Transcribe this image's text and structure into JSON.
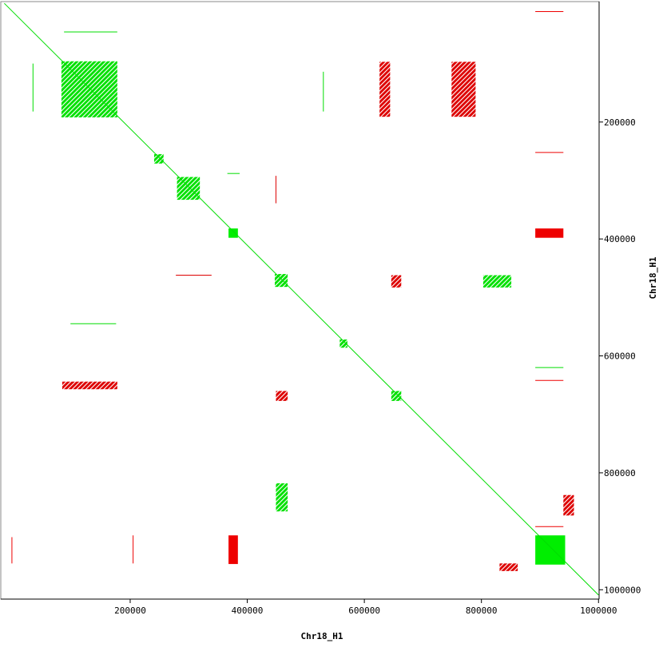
{
  "chart_data": {
    "type": "dotplot",
    "x_label": "Chr18_H1",
    "y_label": "Chr18_H1",
    "xlim": [
      -21000,
      1001000
    ],
    "ylim": [
      -6000,
      1016000
    ],
    "xticks": [
      200000,
      400000,
      600000,
      800000,
      1000000
    ],
    "yticks": [
      200000,
      400000,
      600000,
      800000,
      1000000
    ],
    "blocks": [
      {
        "x": [
          82600,
          178000
        ],
        "y": [
          96100,
          192000
        ],
        "color": "#00e000",
        "style": "hatched"
      },
      {
        "x": [
          241000,
          257000
        ],
        "y": [
          255000,
          271000
        ],
        "color": "#00e000",
        "style": "hatched"
      },
      {
        "x": [
          280000,
          319000
        ],
        "y": [
          294000,
          333000
        ],
        "color": "#00e000",
        "style": "hatched"
      },
      {
        "x": [
          368000,
          384000
        ],
        "y": [
          382000,
          398000
        ],
        "color": "#00ee00",
        "style": "solid"
      },
      {
        "x": [
          447000,
          469000
        ],
        "y": [
          460000,
          482000
        ],
        "color": "#00e000",
        "style": "hatched"
      },
      {
        "x": [
          558000,
          571000
        ],
        "y": [
          572000,
          586000
        ],
        "color": "#00e000",
        "style": "hatched"
      },
      {
        "x": [
          646000,
          663000
        ],
        "y": [
          660000,
          677000
        ],
        "color": "#00e000",
        "style": "hatched"
      },
      {
        "x": [
          892000,
          943000
        ],
        "y": [
          907000,
          957000
        ],
        "color": "#00ee00",
        "style": "solid"
      },
      {
        "x": [
          892000,
          940000
        ],
        "y": [
          382000,
          398000
        ],
        "color": "#ee0000",
        "style": "solid"
      },
      {
        "x": [
          368000,
          384000
        ],
        "y": [
          907000,
          956000
        ],
        "color": "#ee0000",
        "style": "solid"
      },
      {
        "x": [
          626000,
          644000
        ],
        "y": [
          97000,
          191000
        ],
        "color": "#dd0000",
        "style": "hatched"
      },
      {
        "x": [
          84000,
          178000
        ],
        "y": [
          644000,
          657000
        ],
        "color": "#dd0000",
        "style": "hatched"
      },
      {
        "x": [
          646000,
          663000
        ],
        "y": [
          462000,
          483000
        ],
        "color": "#dd0000",
        "style": "hatched"
      },
      {
        "x": [
          449000,
          469000
        ],
        "y": [
          660000,
          677000
        ],
        "color": "#dd0000",
        "style": "hatched"
      },
      {
        "x": [
          449000,
          469000
        ],
        "y": [
          818000,
          866000
        ],
        "color": "#00e000",
        "style": "hatched"
      },
      {
        "x": [
          803000,
          851000
        ],
        "y": [
          462000,
          483000
        ],
        "color": "#00e000",
        "style": "hatched"
      },
      {
        "x": [
          831000,
          862000
        ],
        "y": [
          955000,
          968000
        ],
        "color": "#dd0000",
        "style": "hatched"
      },
      {
        "x": [
          940000,
          958000
        ],
        "y": [
          838000,
          873000
        ],
        "color": "#dd0000",
        "style": "hatched"
      },
      {
        "x": [
          749000,
          790000
        ],
        "y": [
          97000,
          191000
        ],
        "color": "#dd0000",
        "style": "hatched"
      }
    ],
    "lines": [
      {
        "x": [
          -15000,
          1000000
        ],
        "y": [
          -3000,
          1009000
        ],
        "color": "#00dd00"
      },
      {
        "x": [
          892000,
          940000
        ],
        "y": [
          11000,
          11000
        ],
        "color": "#ee0000"
      },
      {
        "x": [
          892000,
          940000
        ],
        "y": [
          252000,
          252000
        ],
        "color": "#ee0000"
      },
      {
        "x": [
          892000,
          940000
        ],
        "y": [
          892000,
          892000
        ],
        "color": "#ee0000"
      },
      {
        "x": [
          892000,
          940000
        ],
        "y": [
          620000,
          620000
        ],
        "color": "#00dd00"
      },
      {
        "x": [
          892000,
          940000
        ],
        "y": [
          642000,
          642000
        ],
        "color": "#ee0000"
      },
      {
        "x": [
          366000,
          387000
        ],
        "y": [
          288000,
          288000
        ],
        "color": "#00dd00"
      },
      {
        "x": [
          87000,
          178000
        ],
        "y": [
          46000,
          46000
        ],
        "color": "#00dd00"
      },
      {
        "x": [
          449000,
          449000
        ],
        "y": [
          292000,
          339000
        ],
        "color": "#dd0000"
      },
      {
        "x": [
          278000,
          339000
        ],
        "y": [
          462000,
          462000
        ],
        "color": "#dd0000"
      },
      {
        "x": [
          530000,
          530000
        ],
        "y": [
          114000,
          182000
        ],
        "color": "#00dd00"
      },
      {
        "x": [
          -2000,
          -2000
        ],
        "y": [
          910000,
          955000
        ],
        "color": "#ee0000"
      },
      {
        "x": [
          34000,
          34000
        ],
        "y": [
          100000,
          182000
        ],
        "color": "#00dd00"
      },
      {
        "x": [
          205000,
          205000
        ],
        "y": [
          907000,
          955000
        ],
        "color": "#ee0000"
      },
      {
        "x": [
          98000,
          176000
        ],
        "y": [
          545000,
          545000
        ],
        "color": "#00dd00"
      }
    ]
  }
}
